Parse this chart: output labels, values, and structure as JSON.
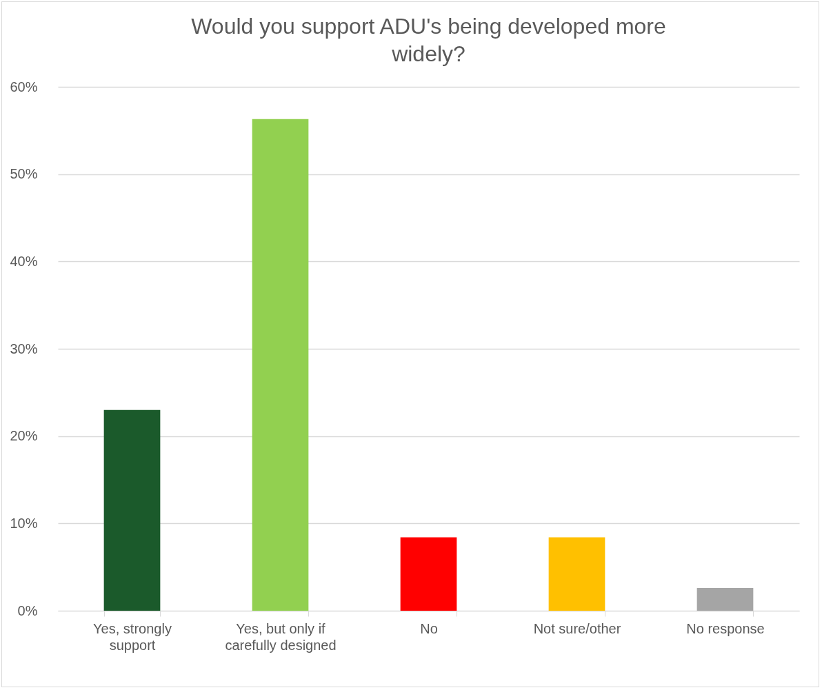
{
  "chart_data": {
    "type": "bar",
    "title": "Would you support ADU's being developed more widely?",
    "categories": [
      "Yes, strongly support",
      "Yes, but only if carefully designed",
      "No",
      "Not sure/other",
      "No response"
    ],
    "values": [
      23,
      56.3,
      8.4,
      8.4,
      2.6
    ],
    "colors": [
      "#1b5a2b",
      "#92d050",
      "#ff0000",
      "#ffc000",
      "#a5a5a5"
    ],
    "ylim": [
      0,
      60
    ],
    "yticks": [
      {
        "value": 0,
        "label": "0%"
      },
      {
        "value": 10,
        "label": "10%"
      },
      {
        "value": 20,
        "label": "20%"
      },
      {
        "value": 30,
        "label": "30%"
      },
      {
        "value": 40,
        "label": "40%"
      },
      {
        "value": 50,
        "label": "50%"
      },
      {
        "value": 60,
        "label": "60%"
      }
    ],
    "grid": "y"
  }
}
